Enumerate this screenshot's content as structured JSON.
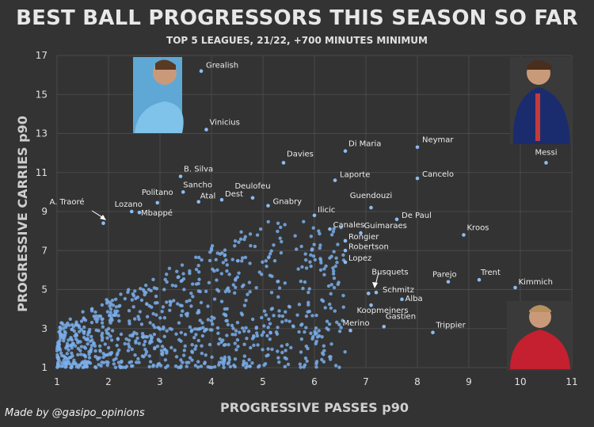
{
  "chart_data": {
    "type": "scatter",
    "title": "BEST BALL PROGRESSORS THIS SEASON SO FAR",
    "subtitle": "TOP 5 LEAGUES, 21/22, +700 MINUTES MINIMUM",
    "xlabel": "PROGRESSIVE PASSES p90",
    "ylabel": "PROGRESSIVE CARRIES p90",
    "xlim": [
      1,
      11
    ],
    "ylim": [
      1,
      17
    ],
    "xticks": [
      1,
      2,
      3,
      4,
      5,
      6,
      7,
      8,
      9,
      10,
      11
    ],
    "yticks": [
      1,
      3,
      5,
      7,
      9,
      11,
      13,
      15,
      17
    ],
    "grid": true,
    "labeled_points": [
      {
        "name": "Grealish",
        "x": 3.8,
        "y": 16.2
      },
      {
        "name": "Vinicius",
        "x": 3.9,
        "y": 13.2
      },
      {
        "name": "Di Maria",
        "x": 6.6,
        "y": 12.1
      },
      {
        "name": "Neymar",
        "x": 8.0,
        "y": 12.3
      },
      {
        "name": "Messi",
        "x": 10.5,
        "y": 11.5
      },
      {
        "name": "Davies",
        "x": 5.4,
        "y": 11.5
      },
      {
        "name": "B. Silva",
        "x": 3.4,
        "y": 10.8
      },
      {
        "name": "Laporte",
        "x": 6.4,
        "y": 10.6
      },
      {
        "name": "Cancelo",
        "x": 8.0,
        "y": 10.7
      },
      {
        "name": "Sancho",
        "x": 3.45,
        "y": 10.0
      },
      {
        "name": "Politano",
        "x": 2.95,
        "y": 9.45
      },
      {
        "name": "Atal",
        "x": 3.75,
        "y": 9.5
      },
      {
        "name": "Dest",
        "x": 4.2,
        "y": 9.6
      },
      {
        "name": "Deulofeu",
        "x": 4.8,
        "y": 9.7
      },
      {
        "name": "A. Traoré",
        "x": 1.9,
        "y": 8.4
      },
      {
        "name": "Lozano",
        "x": 2.45,
        "y": 9.0
      },
      {
        "name": "Mbappé",
        "x": 2.6,
        "y": 8.95
      },
      {
        "name": "Gnabry",
        "x": 5.1,
        "y": 9.3
      },
      {
        "name": "Guendouzi",
        "x": 7.1,
        "y": 9.2
      },
      {
        "name": "Ilicic",
        "x": 6.0,
        "y": 8.8
      },
      {
        "name": "De Paul",
        "x": 7.6,
        "y": 8.6
      },
      {
        "name": "Canales",
        "x": 6.3,
        "y": 8.1
      },
      {
        "name": "Guimaraes",
        "x": 6.9,
        "y": 7.9
      },
      {
        "name": "Kroos",
        "x": 8.9,
        "y": 7.8
      },
      {
        "name": "Rongier",
        "x": 6.6,
        "y": 7.5
      },
      {
        "name": "Robertson",
        "x": 6.6,
        "y": 7.0
      },
      {
        "name": "Lopez",
        "x": 6.6,
        "y": 6.4
      },
      {
        "name": "Busquets",
        "x": 7.05,
        "y": 4.8
      },
      {
        "name": "Parejo",
        "x": 8.6,
        "y": 5.4
      },
      {
        "name": "Trent",
        "x": 9.2,
        "y": 5.5
      },
      {
        "name": "Kimmich",
        "x": 9.9,
        "y": 5.1
      },
      {
        "name": "Schmitz",
        "x": 7.2,
        "y": 4.85
      },
      {
        "name": "Alba",
        "x": 7.7,
        "y": 4.5
      },
      {
        "name": "Koopmeiners",
        "x": 7.1,
        "y": 4.2
      },
      {
        "name": "Gastien",
        "x": 7.35,
        "y": 3.1
      },
      {
        "name": "Merino",
        "x": 6.7,
        "y": 2.9
      },
      {
        "name": "Trippier",
        "x": 8.3,
        "y": 2.8
      }
    ],
    "background_point_count": 900
  },
  "credit": "Made by @gasipo_opinions",
  "colors": {
    "background": "#333333",
    "grid": "#4a4a4a",
    "point": "#7aaeea"
  }
}
